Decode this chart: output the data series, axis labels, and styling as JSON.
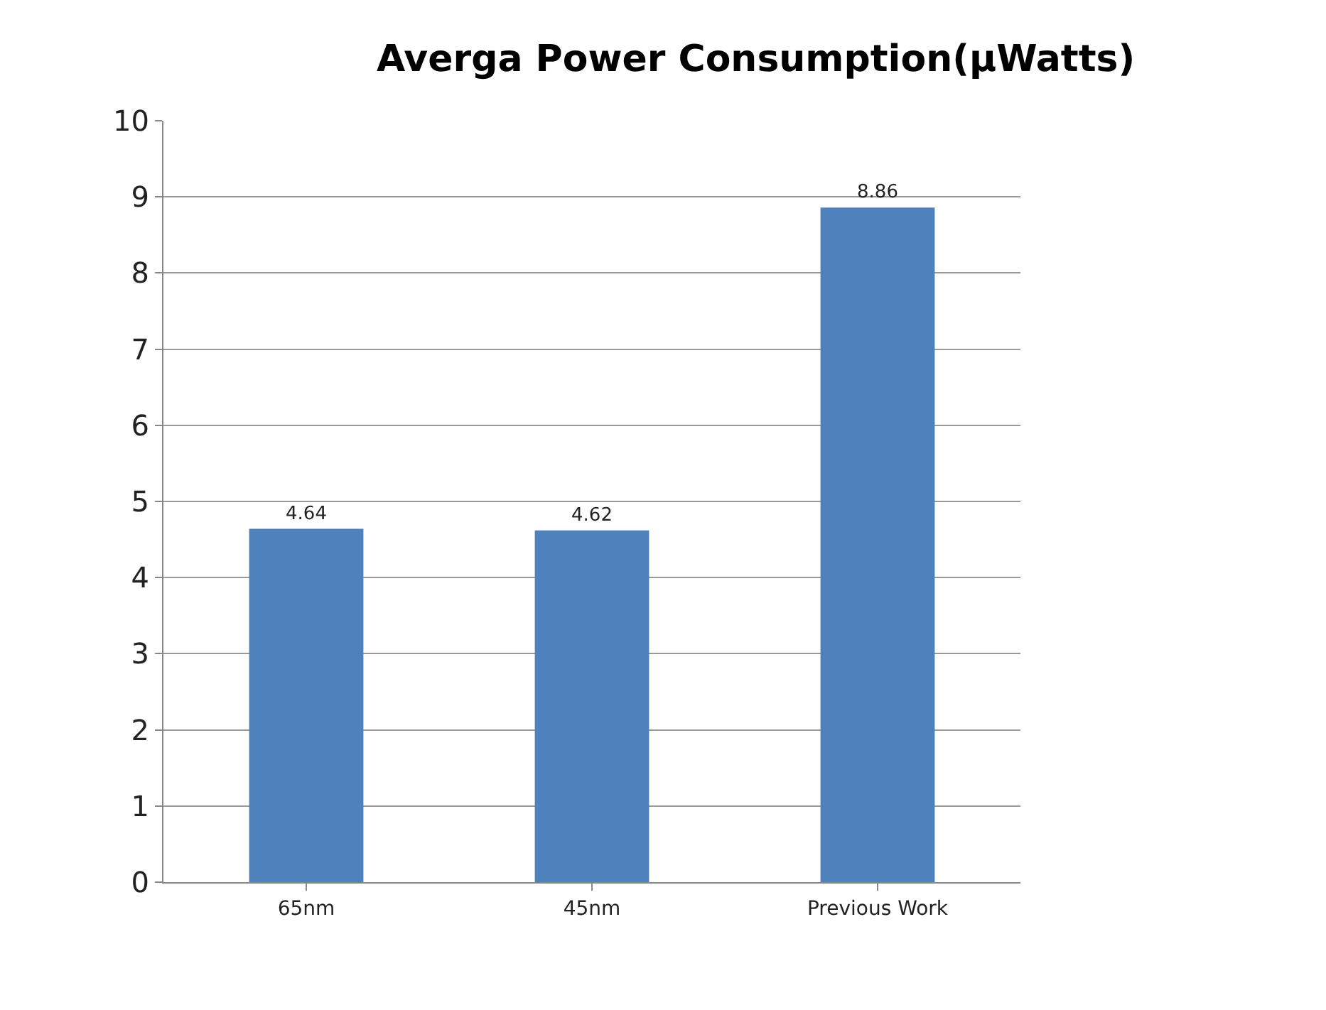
{
  "chart_data": {
    "type": "bar",
    "title": "Averga Power Consumption(µWatts)",
    "categories": [
      "65nm",
      "45nm",
      "Previous Work"
    ],
    "values": [
      4.64,
      4.62,
      8.86
    ],
    "color": "#4f81bd",
    "ylim": [
      0,
      10
    ],
    "yticks": [
      0,
      1,
      2,
      3,
      4,
      5,
      6,
      7,
      8,
      9,
      10
    ],
    "grid": "y",
    "data_labels": true,
    "legend": false
  }
}
